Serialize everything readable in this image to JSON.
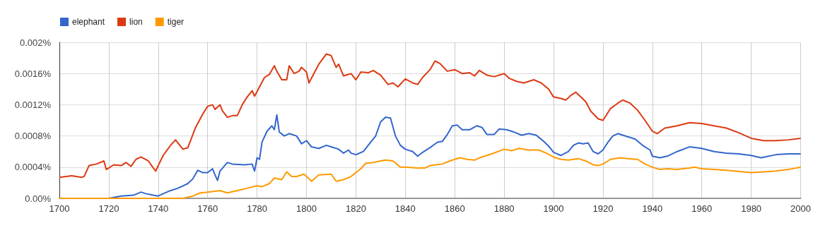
{
  "chart_data": {
    "type": "line",
    "legend": "top left",
    "grid": true,
    "marker": "none",
    "line_style": "solid",
    "xlim": [
      1700,
      2000
    ],
    "xticks": [
      1700,
      1720,
      1740,
      1760,
      1780,
      1800,
      1820,
      1840,
      1860,
      1880,
      1900,
      1920,
      1940,
      1960,
      1980,
      2000
    ],
    "ylim": [
      0,
      0.002
    ],
    "yticks": [
      {
        "value": 0,
        "label": "0.00%"
      },
      {
        "value": 0.0004,
        "label": "0.0004%"
      },
      {
        "value": 0.0008,
        "label": "0.0008%"
      },
      {
        "value": 0.0012,
        "label": "0.0012%"
      },
      {
        "value": 0.0016,
        "label": "0.0016%"
      },
      {
        "value": 0.002,
        "label": "0.002%"
      }
    ],
    "series": [
      {
        "name": "elephant",
        "color": "#3366cc",
        "x": [
          1700,
          1720,
          1725,
          1730,
          1733,
          1735,
          1738,
          1740,
          1742,
          1745,
          1748,
          1750,
          1752,
          1754,
          1756,
          1758,
          1760,
          1762,
          1763,
          1764,
          1765,
          1768,
          1770,
          1775,
          1778,
          1779,
          1780,
          1781,
          1782,
          1784,
          1786,
          1787,
          1788,
          1789,
          1791,
          1793,
          1796,
          1798,
          1800,
          1802,
          1805,
          1808,
          1810,
          1813,
          1815,
          1817,
          1818,
          1820,
          1823,
          1826,
          1828,
          1830,
          1832,
          1834,
          1836,
          1838,
          1840,
          1843,
          1845,
          1847,
          1850,
          1853,
          1855,
          1857,
          1859,
          1861,
          1863,
          1866,
          1869,
          1871,
          1873,
          1876,
          1878,
          1881,
          1884,
          1887,
          1890,
          1893,
          1896,
          1898,
          1900,
          1903,
          1906,
          1908,
          1910,
          1912,
          1914,
          1916,
          1918,
          1920,
          1922,
          1924,
          1926,
          1928,
          1931,
          1933,
          1936,
          1939,
          1940,
          1943,
          1946,
          1950,
          1955,
          1960,
          1965,
          1970,
          1975,
          1980,
          1984,
          1990,
          1995,
          2000
        ],
        "values": [
          0,
          0,
          3e-05,
          4e-05,
          8e-05,
          6e-05,
          4e-05,
          3e-05,
          6e-05,
          0.0001,
          0.00013,
          0.00016,
          0.00019,
          0.00025,
          0.00036,
          0.00033,
          0.00033,
          0.00038,
          0.0003,
          0.00023,
          0.00035,
          0.00046,
          0.00044,
          0.00043,
          0.00044,
          0.00035,
          0.00052,
          0.0005,
          0.00072,
          0.00086,
          0.00093,
          0.00088,
          0.00107,
          0.00085,
          0.0008,
          0.00083,
          0.0008,
          0.0007,
          0.00074,
          0.00066,
          0.00064,
          0.00068,
          0.00066,
          0.00063,
          0.00058,
          0.00062,
          0.00058,
          0.00056,
          0.0006,
          0.00072,
          0.0008,
          0.00098,
          0.00104,
          0.00103,
          0.0008,
          0.00068,
          0.00063,
          0.0006,
          0.00054,
          0.00059,
          0.00065,
          0.00072,
          0.00073,
          0.00082,
          0.00093,
          0.00094,
          0.00088,
          0.00088,
          0.00093,
          0.00091,
          0.00082,
          0.00082,
          0.00089,
          0.00088,
          0.00085,
          0.00081,
          0.00083,
          0.00081,
          0.00073,
          0.00067,
          0.00059,
          0.00055,
          0.0006,
          0.00068,
          0.00071,
          0.0007,
          0.00071,
          0.0006,
          0.00057,
          0.00062,
          0.00072,
          0.0008,
          0.00083,
          0.00081,
          0.00078,
          0.00076,
          0.00068,
          0.00062,
          0.00054,
          0.00052,
          0.00054,
          0.0006,
          0.00066,
          0.00064,
          0.0006,
          0.00058,
          0.00057,
          0.00055,
          0.00052,
          0.00056,
          0.00057,
          0.00057
        ]
      },
      {
        "name": "lion",
        "color": "#dc3912",
        "x": [
          1700,
          1705,
          1709,
          1710,
          1712,
          1715,
          1718,
          1719,
          1722,
          1725,
          1727,
          1729,
          1731,
          1733,
          1736,
          1738,
          1739,
          1740,
          1742,
          1745,
          1747,
          1750,
          1752,
          1755,
          1758,
          1760,
          1762,
          1763,
          1765,
          1766,
          1768,
          1770,
          1772,
          1774,
          1776,
          1778,
          1779,
          1781,
          1783,
          1785,
          1787,
          1788,
          1790,
          1792,
          1793,
          1795,
          1797,
          1798,
          1800,
          1801,
          1805,
          1808,
          1810,
          1812,
          1813,
          1815,
          1818,
          1820,
          1822,
          1825,
          1827,
          1830,
          1833,
          1835,
          1837,
          1840,
          1843,
          1845,
          1847,
          1850,
          1852,
          1854,
          1857,
          1860,
          1863,
          1866,
          1868,
          1870,
          1873,
          1876,
          1880,
          1882,
          1885,
          1888,
          1890,
          1892,
          1895,
          1898,
          1900,
          1903,
          1905,
          1907,
          1909,
          1911,
          1913,
          1915,
          1918,
          1920,
          1923,
          1926,
          1928,
          1931,
          1934,
          1937,
          1940,
          1942,
          1945,
          1950,
          1955,
          1960,
          1965,
          1970,
          1975,
          1980,
          1985,
          1990,
          1995,
          2000
        ],
        "values": [
          0.00027,
          0.00029,
          0.00027,
          0.00028,
          0.00042,
          0.00044,
          0.00048,
          0.00037,
          0.00043,
          0.00042,
          0.00046,
          0.00041,
          0.0005,
          0.00053,
          0.00048,
          0.00039,
          0.00035,
          0.00042,
          0.00055,
          0.00068,
          0.00075,
          0.00063,
          0.00065,
          0.0009,
          0.00108,
          0.00118,
          0.0012,
          0.00114,
          0.0012,
          0.00112,
          0.00104,
          0.00106,
          0.00106,
          0.0012,
          0.0013,
          0.00138,
          0.00131,
          0.00143,
          0.00155,
          0.00159,
          0.0017,
          0.00163,
          0.00152,
          0.00152,
          0.0017,
          0.0016,
          0.00163,
          0.00168,
          0.00162,
          0.00148,
          0.00172,
          0.00185,
          0.00183,
          0.00168,
          0.00172,
          0.00157,
          0.0016,
          0.00152,
          0.00162,
          0.00161,
          0.00164,
          0.00158,
          0.00146,
          0.00148,
          0.00143,
          0.00153,
          0.00148,
          0.00146,
          0.00155,
          0.00165,
          0.00176,
          0.00173,
          0.00163,
          0.00165,
          0.0016,
          0.00161,
          0.00157,
          0.00164,
          0.00158,
          0.00156,
          0.0016,
          0.00154,
          0.0015,
          0.00148,
          0.0015,
          0.00152,
          0.00148,
          0.0014,
          0.0013,
          0.00128,
          0.00126,
          0.00132,
          0.00136,
          0.0013,
          0.00124,
          0.00112,
          0.00102,
          0.001,
          0.00115,
          0.00122,
          0.00126,
          0.00122,
          0.00113,
          0.001,
          0.00086,
          0.00083,
          0.0009,
          0.00093,
          0.00097,
          0.00096,
          0.00093,
          0.0009,
          0.00084,
          0.00077,
          0.00074,
          0.00074,
          0.00075,
          0.00077
        ]
      },
      {
        "name": "tiger",
        "color": "#ff9900",
        "x": [
          1700,
          1720,
          1750,
          1754,
          1757,
          1760,
          1765,
          1768,
          1772,
          1776,
          1780,
          1782,
          1785,
          1787,
          1790,
          1792,
          1794,
          1796,
          1799,
          1802,
          1805,
          1810,
          1812,
          1815,
          1818,
          1820,
          1822,
          1824,
          1827,
          1830,
          1832,
          1835,
          1838,
          1840,
          1845,
          1848,
          1850,
          1855,
          1858,
          1862,
          1865,
          1868,
          1870,
          1875,
          1880,
          1883,
          1886,
          1890,
          1894,
          1897,
          1900,
          1903,
          1906,
          1910,
          1913,
          1916,
          1918,
          1920,
          1923,
          1927,
          1930,
          1934,
          1937,
          1940,
          1943,
          1946,
          1950,
          1955,
          1957,
          1960,
          1970,
          1980,
          1985,
          1990,
          1995,
          2000
        ],
        "values": [
          0,
          0,
          0,
          3e-05,
          7e-05,
          8e-05,
          0.0001,
          7e-05,
          0.0001,
          0.00013,
          0.00016,
          0.00015,
          0.00019,
          0.00026,
          0.00024,
          0.00034,
          0.00028,
          0.00028,
          0.00031,
          0.00022,
          0.0003,
          0.00031,
          0.00022,
          0.00024,
          0.00028,
          0.00033,
          0.00038,
          0.00045,
          0.00046,
          0.00048,
          0.00049,
          0.00048,
          0.0004,
          0.0004,
          0.00039,
          0.00039,
          0.00042,
          0.00044,
          0.00048,
          0.00052,
          0.0005,
          0.00049,
          0.00052,
          0.00057,
          0.00063,
          0.00061,
          0.00064,
          0.00062,
          0.00062,
          0.00058,
          0.00053,
          0.0005,
          0.00049,
          0.00051,
          0.00048,
          0.00043,
          0.00042,
          0.00044,
          0.0005,
          0.00052,
          0.00051,
          0.0005,
          0.00044,
          0.0004,
          0.00037,
          0.00038,
          0.00037,
          0.00039,
          0.0004,
          0.00038,
          0.00036,
          0.00033,
          0.00034,
          0.00035,
          0.00037,
          0.0004
        ]
      }
    ]
  }
}
